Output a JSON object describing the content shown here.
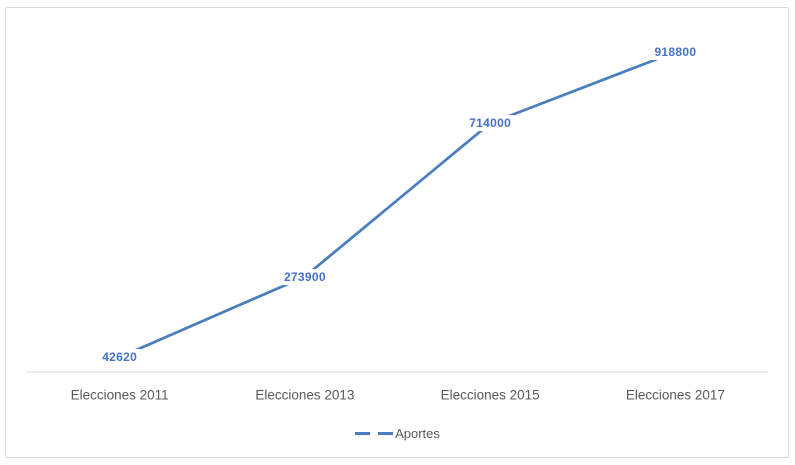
{
  "chart_data": {
    "type": "line",
    "title": "",
    "categories": [
      "Elecciones 2011",
      "Elecciones 2013",
      "Elecciones 2015",
      "Elecciones 2017"
    ],
    "series": [
      {
        "name": "Aportes",
        "values": [
          42620,
          273900,
          714000,
          918800
        ],
        "data_labels": [
          "42620",
          "273900",
          "714000",
          "918800"
        ]
      }
    ],
    "xlabel": "",
    "ylabel": "",
    "ylim": [
      0,
      1000000
    ],
    "grid": false,
    "value_axis_visible": false,
    "legend_position": "bottom",
    "line_style": "solid",
    "markers": "none"
  },
  "colors": {
    "line": "#4a7ebe",
    "data_label": "#4472c4",
    "axis_text": "#595959",
    "axis_line": "#d9d9d9",
    "border": "#d9d9d9",
    "background": "#ffffff"
  }
}
